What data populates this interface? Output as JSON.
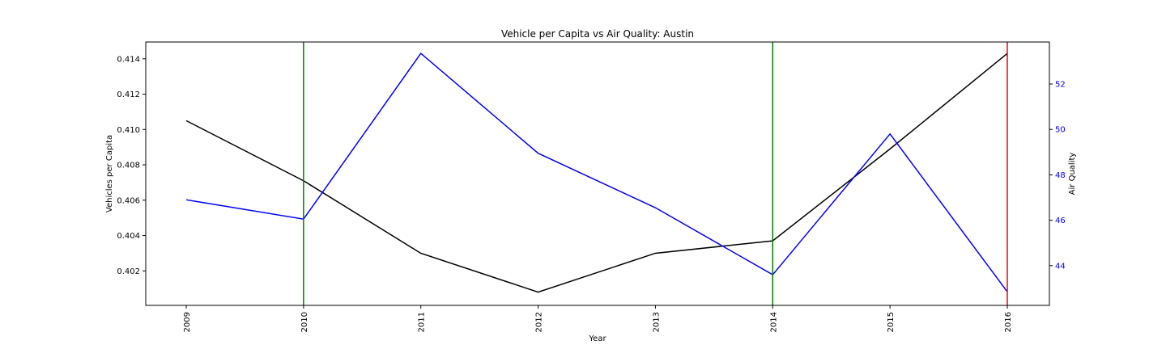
{
  "chart_data": {
    "type": "line",
    "title": "Vehicle per Capita vs Air Quality: Austin",
    "xlabel": "Year",
    "ylabel_left": "Vehicles per Capita",
    "ylabel_right": "Air Quality",
    "categories": [
      "2009",
      "2010",
      "2011",
      "2012",
      "2013",
      "2014",
      "2015",
      "2016"
    ],
    "left_axis": {
      "ylim": [
        0.40005,
        0.41495
      ],
      "ticks": [
        0.402,
        0.404,
        0.406,
        0.408,
        0.41,
        0.412,
        0.414
      ],
      "tick_labels": [
        "0.402",
        "0.404",
        "0.406",
        "0.408",
        "0.410",
        "0.412",
        "0.414"
      ]
    },
    "right_axis": {
      "ylim": [
        42.25,
        53.85
      ],
      "ticks": [
        44,
        46,
        48,
        50,
        52
      ],
      "tick_labels": [
        "44",
        "46",
        "48",
        "50",
        "52"
      ],
      "tick_color": "#0000ff"
    },
    "series": [
      {
        "axis": "left",
        "color": "#000000",
        "values": [
          0.4105,
          0.4071,
          0.403,
          0.4008,
          0.403,
          0.4037,
          0.4089,
          0.4143
        ]
      },
      {
        "axis": "right",
        "color": "#0000ff",
        "values": [
          46.9,
          46.05,
          53.35,
          48.95,
          46.55,
          43.6,
          49.8,
          42.85
        ]
      }
    ],
    "vlines": [
      {
        "x": "2010",
        "color": "#008000"
      },
      {
        "x": "2014",
        "color": "#008000"
      },
      {
        "x": "2016",
        "color": "#ff0000"
      }
    ],
    "grid": false,
    "legend": "none"
  }
}
